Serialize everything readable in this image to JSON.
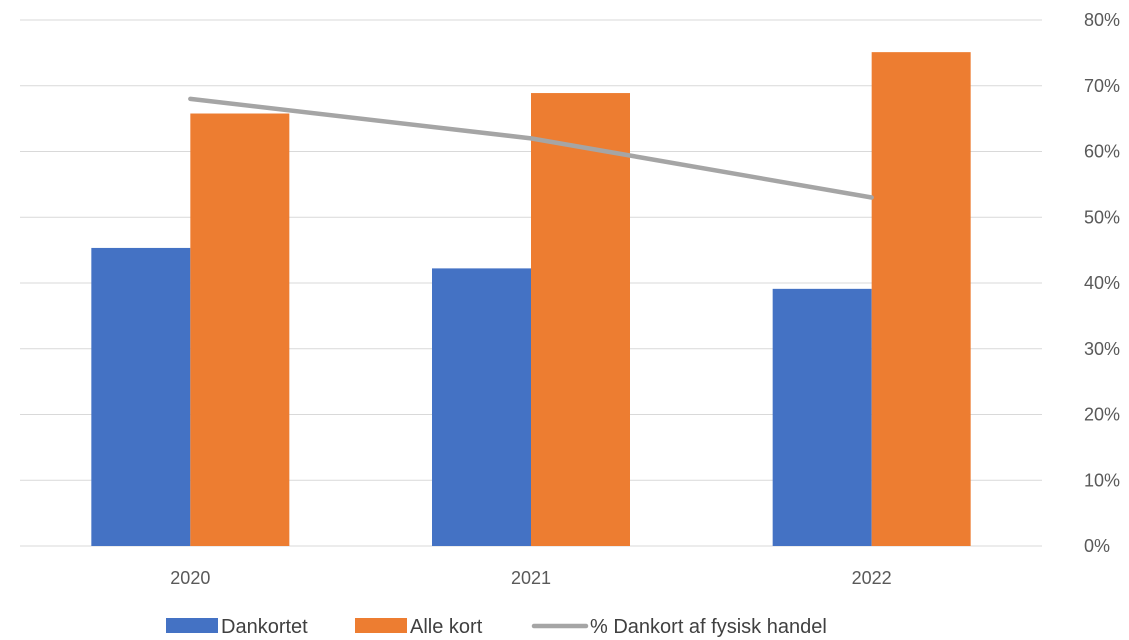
{
  "chart_data": {
    "type": "bar",
    "categories": [
      "2020",
      "2021",
      "2022"
    ],
    "series": [
      {
        "name": "Dankortet",
        "type": "bar",
        "axis": "left",
        "color": "#4472C4",
        "values": [
          51,
          47.5,
          44
        ]
      },
      {
        "name": "Alle kort",
        "type": "bar",
        "axis": "left",
        "color": "#ED7D31",
        "values": [
          74,
          77.5,
          84.5
        ]
      },
      {
        "name": "% Dankort af fysisk handel",
        "type": "line",
        "axis": "right",
        "color": "#A5A5A5",
        "values": [
          68,
          62,
          53
        ]
      }
    ],
    "y2_ticks": [
      "0%",
      "10%",
      "20%",
      "30%",
      "40%",
      "50%",
      "60%",
      "70%",
      "80%"
    ],
    "ylim": [
      0,
      90
    ],
    "y2lim": [
      0,
      80
    ],
    "grid": true,
    "legend_position": "bottom"
  }
}
